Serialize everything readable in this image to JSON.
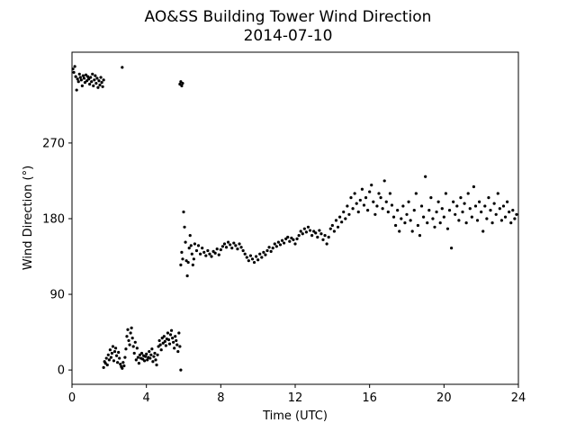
{
  "chart_data": {
    "type": "scatter",
    "title": "AO&SS Building Tower Wind Direction",
    "subtitle": "2014-07-10",
    "xlabel": "Time (UTC)",
    "ylabel": "Wind Direction (°)",
    "xlim": [
      0,
      24
    ],
    "ylim": [
      -17,
      378
    ],
    "xticks": [
      0,
      4,
      8,
      12,
      16,
      20,
      24
    ],
    "yticks": [
      0,
      90,
      180,
      270
    ],
    "grid": false,
    "marker_color": "#000000",
    "series": [
      {
        "points": [
          [
            0.05,
            358
          ],
          [
            0.1,
            354
          ],
          [
            0.15,
            361
          ],
          [
            0.2,
            349
          ],
          [
            0.25,
            333
          ],
          [
            0.3,
            346
          ],
          [
            0.35,
            343
          ],
          [
            0.4,
            352
          ],
          [
            0.45,
            348
          ],
          [
            0.5,
            345
          ],
          [
            0.55,
            338
          ],
          [
            0.6,
            350
          ],
          [
            0.65,
            347
          ],
          [
            0.7,
            342
          ],
          [
            0.75,
            351
          ],
          [
            0.8,
            344
          ],
          [
            0.85,
            349
          ],
          [
            0.9,
            346
          ],
          [
            0.95,
            340
          ],
          [
            1.0,
            348
          ],
          [
            1.05,
            343
          ],
          [
            1.1,
            352
          ],
          [
            1.15,
            338
          ],
          [
            1.2,
            345
          ],
          [
            1.25,
            350
          ],
          [
            1.3,
            341
          ],
          [
            1.35,
            347
          ],
          [
            1.4,
            336
          ],
          [
            1.45,
            344
          ],
          [
            1.5,
            339
          ],
          [
            1.55,
            348
          ],
          [
            1.6,
            342
          ],
          [
            1.65,
            337
          ],
          [
            1.7,
            345
          ],
          [
            2.7,
            360
          ],
          [
            5.8,
            340
          ],
          [
            5.85,
            343
          ],
          [
            5.9,
            338
          ],
          [
            5.95,
            341
          ],
          [
            1.7,
            3
          ],
          [
            1.75,
            10
          ],
          [
            1.8,
            8
          ],
          [
            1.85,
            14
          ],
          [
            1.9,
            6
          ],
          [
            1.95,
            18
          ],
          [
            2.0,
            12
          ],
          [
            2.05,
            24
          ],
          [
            2.1,
            15
          ],
          [
            2.15,
            20
          ],
          [
            2.2,
            28
          ],
          [
            2.25,
            11
          ],
          [
            2.3,
            22
          ],
          [
            2.35,
            26
          ],
          [
            2.4,
            17
          ],
          [
            2.45,
            9
          ],
          [
            2.5,
            21
          ],
          [
            2.55,
            14
          ],
          [
            2.6,
            7
          ],
          [
            2.65,
            4
          ],
          [
            2.7,
            2
          ],
          [
            2.75,
            9
          ],
          [
            2.8,
            5
          ],
          [
            2.85,
            15
          ],
          [
            2.9,
            25
          ],
          [
            2.95,
            40
          ],
          [
            3.0,
            48
          ],
          [
            3.05,
            35
          ],
          [
            3.1,
            30
          ],
          [
            3.15,
            44
          ],
          [
            3.2,
            50
          ],
          [
            3.25,
            38
          ],
          [
            3.3,
            28
          ],
          [
            3.35,
            20
          ],
          [
            3.4,
            33
          ],
          [
            3.45,
            12
          ],
          [
            3.5,
            26
          ],
          [
            3.55,
            15
          ],
          [
            3.6,
            8
          ],
          [
            3.65,
            18
          ],
          [
            3.7,
            14
          ],
          [
            3.75,
            20
          ],
          [
            3.8,
            13
          ],
          [
            3.85,
            17
          ],
          [
            3.9,
            11
          ],
          [
            3.95,
            16
          ],
          [
            4.0,
            19
          ],
          [
            4.05,
            12
          ],
          [
            4.1,
            15
          ],
          [
            4.15,
            22
          ],
          [
            4.2,
            14
          ],
          [
            4.25,
            18
          ],
          [
            4.3,
            25
          ],
          [
            4.35,
            10
          ],
          [
            4.4,
            16
          ],
          [
            4.45,
            20
          ],
          [
            4.5,
            12
          ],
          [
            4.55,
            6
          ],
          [
            4.6,
            18
          ],
          [
            4.65,
            28
          ],
          [
            4.7,
            35
          ],
          [
            4.75,
            30
          ],
          [
            4.8,
            24
          ],
          [
            4.85,
            38
          ],
          [
            4.9,
            32
          ],
          [
            4.95,
            40
          ],
          [
            5.0,
            34
          ],
          [
            5.05,
            29
          ],
          [
            5.1,
            37
          ],
          [
            5.15,
            44
          ],
          [
            5.2,
            36
          ],
          [
            5.25,
            31
          ],
          [
            5.3,
            42
          ],
          [
            5.35,
            47
          ],
          [
            5.4,
            38
          ],
          [
            5.45,
            33
          ],
          [
            5.5,
            26
          ],
          [
            5.55,
            40
          ],
          [
            5.6,
            35
          ],
          [
            5.65,
            30
          ],
          [
            5.7,
            22
          ],
          [
            5.75,
            44
          ],
          [
            5.8,
            28
          ],
          [
            5.85,
            0
          ],
          [
            5.85,
            125
          ],
          [
            5.9,
            140
          ],
          [
            5.95,
            132
          ],
          [
            6.0,
            188
          ],
          [
            6.05,
            170
          ],
          [
            6.1,
            152
          ],
          [
            6.15,
            130
          ],
          [
            6.2,
            112
          ],
          [
            6.25,
            128
          ],
          [
            6.3,
            145
          ],
          [
            6.35,
            160
          ],
          [
            6.4,
            148
          ],
          [
            6.45,
            138
          ],
          [
            6.5,
            125
          ],
          [
            6.55,
            132
          ],
          [
            6.6,
            150
          ],
          [
            6.7,
            142
          ],
          [
            6.8,
            148
          ],
          [
            6.9,
            138
          ],
          [
            7.0,
            145
          ],
          [
            7.1,
            140
          ],
          [
            7.2,
            136
          ],
          [
            7.3,
            142
          ],
          [
            7.4,
            138
          ],
          [
            7.5,
            135
          ],
          [
            7.6,
            141
          ],
          [
            7.7,
            139
          ],
          [
            7.8,
            144
          ],
          [
            7.9,
            137
          ],
          [
            8.0,
            143
          ],
          [
            8.1,
            147
          ],
          [
            8.2,
            150
          ],
          [
            8.3,
            146
          ],
          [
            8.4,
            152
          ],
          [
            8.5,
            149
          ],
          [
            8.6,
            145
          ],
          [
            8.7,
            151
          ],
          [
            8.8,
            148
          ],
          [
            8.9,
            144
          ],
          [
            9.0,
            150
          ],
          [
            9.1,
            146
          ],
          [
            9.2,
            142
          ],
          [
            9.3,
            138
          ],
          [
            9.4,
            134
          ],
          [
            9.5,
            130
          ],
          [
            9.6,
            136
          ],
          [
            9.7,
            132
          ],
          [
            9.8,
            128
          ],
          [
            9.9,
            135
          ],
          [
            10.0,
            131
          ],
          [
            10.1,
            138
          ],
          [
            10.2,
            134
          ],
          [
            10.3,
            140
          ],
          [
            10.4,
            137
          ],
          [
            10.5,
            142
          ],
          [
            10.6,
            146
          ],
          [
            10.7,
            141
          ],
          [
            10.8,
            145
          ],
          [
            10.9,
            150
          ],
          [
            11.0,
            147
          ],
          [
            11.1,
            152
          ],
          [
            11.2,
            149
          ],
          [
            11.3,
            154
          ],
          [
            11.4,
            151
          ],
          [
            11.5,
            156
          ],
          [
            11.6,
            158
          ],
          [
            11.7,
            153
          ],
          [
            11.8,
            157
          ],
          [
            11.9,
            155
          ],
          [
            12.0,
            150
          ],
          [
            12.1,
            156
          ],
          [
            12.2,
            160
          ],
          [
            12.3,
            165
          ],
          [
            12.4,
            162
          ],
          [
            12.5,
            168
          ],
          [
            12.6,
            164
          ],
          [
            12.7,
            170
          ],
          [
            12.8,
            166
          ],
          [
            12.9,
            160
          ],
          [
            13.0,
            165
          ],
          [
            13.1,
            163
          ],
          [
            13.2,
            158
          ],
          [
            13.3,
            166
          ],
          [
            13.4,
            162
          ],
          [
            13.5,
            155
          ],
          [
            13.6,
            160
          ],
          [
            13.7,
            150
          ],
          [
            13.8,
            158
          ],
          [
            13.9,
            168
          ],
          [
            14.0,
            172
          ],
          [
            14.1,
            165
          ],
          [
            14.2,
            178
          ],
          [
            14.3,
            170
          ],
          [
            14.4,
            182
          ],
          [
            14.5,
            176
          ],
          [
            14.6,
            188
          ],
          [
            14.7,
            180
          ],
          [
            14.8,
            195
          ],
          [
            14.9,
            185
          ],
          [
            15.0,
            205
          ],
          [
            15.1,
            192
          ],
          [
            15.2,
            210
          ],
          [
            15.3,
            198
          ],
          [
            15.4,
            188
          ],
          [
            15.5,
            202
          ],
          [
            15.6,
            215
          ],
          [
            15.7,
            196
          ],
          [
            15.8,
            205
          ],
          [
            15.9,
            190
          ],
          [
            16.0,
            212
          ],
          [
            16.1,
            220
          ],
          [
            16.2,
            200
          ],
          [
            16.3,
            185
          ],
          [
            16.4,
            195
          ],
          [
            16.5,
            210
          ],
          [
            16.6,
            205
          ],
          [
            16.7,
            192
          ],
          [
            16.8,
            225
          ],
          [
            16.9,
            200
          ],
          [
            17.0,
            188
          ],
          [
            17.1,
            210
          ],
          [
            17.2,
            196
          ],
          [
            17.3,
            182
          ],
          [
            17.4,
            172
          ],
          [
            17.5,
            190
          ],
          [
            17.6,
            165
          ],
          [
            17.7,
            180
          ],
          [
            17.8,
            195
          ],
          [
            17.9,
            175
          ],
          [
            18.0,
            185
          ],
          [
            18.1,
            200
          ],
          [
            18.2,
            178
          ],
          [
            18.3,
            165
          ],
          [
            18.4,
            190
          ],
          [
            18.5,
            210
          ],
          [
            18.6,
            172
          ],
          [
            18.7,
            160
          ],
          [
            18.8,
            195
          ],
          [
            18.9,
            182
          ],
          [
            19.0,
            230
          ],
          [
            19.1,
            175
          ],
          [
            19.2,
            190
          ],
          [
            19.3,
            205
          ],
          [
            19.4,
            180
          ],
          [
            19.5,
            170
          ],
          [
            19.6,
            188
          ],
          [
            19.7,
            200
          ],
          [
            19.8,
            175
          ],
          [
            19.9,
            192
          ],
          [
            20.0,
            182
          ],
          [
            20.1,
            210
          ],
          [
            20.2,
            168
          ],
          [
            20.3,
            190
          ],
          [
            20.4,
            145
          ],
          [
            20.5,
            200
          ],
          [
            20.6,
            185
          ],
          [
            20.7,
            195
          ],
          [
            20.8,
            178
          ],
          [
            20.9,
            205
          ],
          [
            21.0,
            188
          ],
          [
            21.1,
            198
          ],
          [
            21.2,
            175
          ],
          [
            21.3,
            210
          ],
          [
            21.4,
            192
          ],
          [
            21.5,
            182
          ],
          [
            21.6,
            218
          ],
          [
            21.7,
            195
          ],
          [
            21.8,
            178
          ],
          [
            21.9,
            200
          ],
          [
            22.0,
            188
          ],
          [
            22.1,
            165
          ],
          [
            22.2,
            195
          ],
          [
            22.3,
            180
          ],
          [
            22.4,
            205
          ],
          [
            22.5,
            190
          ],
          [
            22.6,
            175
          ],
          [
            22.7,
            198
          ],
          [
            22.8,
            185
          ],
          [
            22.9,
            210
          ],
          [
            23.0,
            192
          ],
          [
            23.1,
            178
          ],
          [
            23.2,
            195
          ],
          [
            23.3,
            182
          ],
          [
            23.4,
            200
          ],
          [
            23.5,
            188
          ],
          [
            23.6,
            175
          ],
          [
            23.7,
            190
          ],
          [
            23.8,
            180
          ],
          [
            23.9,
            185
          ]
        ]
      }
    ]
  }
}
